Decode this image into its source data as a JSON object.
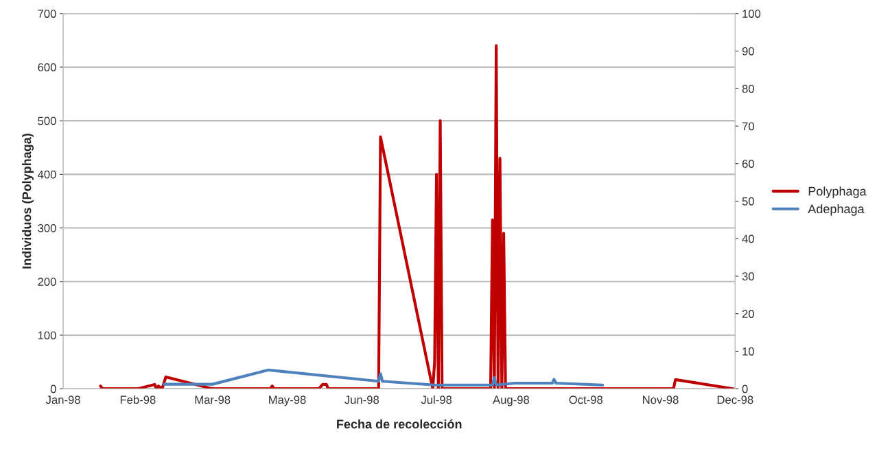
{
  "chart_data": {
    "type": "line",
    "xlabel": "Fecha de recolección",
    "ylabel": "Individuos (Polyphaga)",
    "xlim": [
      "1998-01-01",
      "1998-12-27"
    ],
    "xticks": [
      {
        "value": "1998-01-01",
        "label": "Jan-98"
      },
      {
        "value": "1998-02-10",
        "label": "Feb-98"
      },
      {
        "value": "1998-03-22",
        "label": "Mar-98"
      },
      {
        "value": "1998-05-01",
        "label": "May-98"
      },
      {
        "value": "1998-06-10",
        "label": "Jun-98"
      },
      {
        "value": "1998-07-20",
        "label": "Jul-98"
      },
      {
        "value": "1998-08-29",
        "label": "Aug-98"
      },
      {
        "value": "1998-10-08",
        "label": "Oct-98"
      },
      {
        "value": "1998-11-17",
        "label": "Nov-98"
      },
      {
        "value": "1998-12-27",
        "label": "Dec-98"
      }
    ],
    "ylim": [
      0,
      700
    ],
    "yticks": [
      0,
      100,
      200,
      300,
      400,
      500,
      600,
      700
    ],
    "y2lim": [
      0,
      100
    ],
    "y2ticks": [
      0,
      10,
      20,
      30,
      40,
      50,
      60,
      70,
      80,
      90,
      100
    ],
    "grid": "y",
    "legend": "right",
    "marker": "none",
    "line_style": "solid",
    "series": [
      {
        "name": "Polyphaga",
        "color": "#c00000",
        "x": [
          "1998-01-21",
          "1998-01-22",
          "1998-02-10",
          "1998-02-19",
          "1998-02-20",
          "1998-02-21",
          "1998-02-23",
          "1998-02-25",
          "1998-03-22",
          "1998-04-22",
          "1998-04-23",
          "1998-04-24",
          "1998-05-18",
          "1998-05-20",
          "1998-05-22",
          "1998-05-23",
          "1998-06-19",
          "1998-06-20",
          "1998-07-18",
          "1998-07-19",
          "1998-07-20",
          "1998-07-21",
          "1998-07-22",
          "1998-07-23",
          "1998-08-18",
          "1998-08-19",
          "1998-08-20",
          "1998-08-21",
          "1998-08-22",
          "1998-08-23",
          "1998-08-24",
          "1998-08-25",
          "1998-08-26",
          "1998-11-24",
          "1998-11-25",
          "1998-12-26"
        ],
        "values": [
          5,
          0,
          0,
          8,
          0,
          5,
          0,
          22,
          0,
          0,
          5,
          0,
          0,
          8,
          8,
          0,
          0,
          470,
          0,
          50,
          400,
          0,
          500,
          0,
          0,
          315,
          0,
          640,
          0,
          430,
          0,
          290,
          0,
          0,
          17,
          0
        ]
      },
      {
        "name": "Adephaga",
        "color": "#4f81bd",
        "axis": "y2",
        "x": [
          "1998-02-24",
          "1998-03-22",
          "1998-04-21",
          "1998-06-19",
          "1998-06-20",
          "1998-06-21",
          "1998-07-19",
          "1998-08-19",
          "1998-08-20",
          "1998-08-21",
          "1998-08-31",
          "1998-09-20",
          "1998-09-21",
          "1998-09-22",
          "1998-10-17"
        ],
        "values": [
          1.2,
          1.2,
          5,
          2,
          4,
          2,
          1,
          1,
          3,
          1,
          1.5,
          1.5,
          2.5,
          1.5,
          1
        ]
      }
    ]
  }
}
